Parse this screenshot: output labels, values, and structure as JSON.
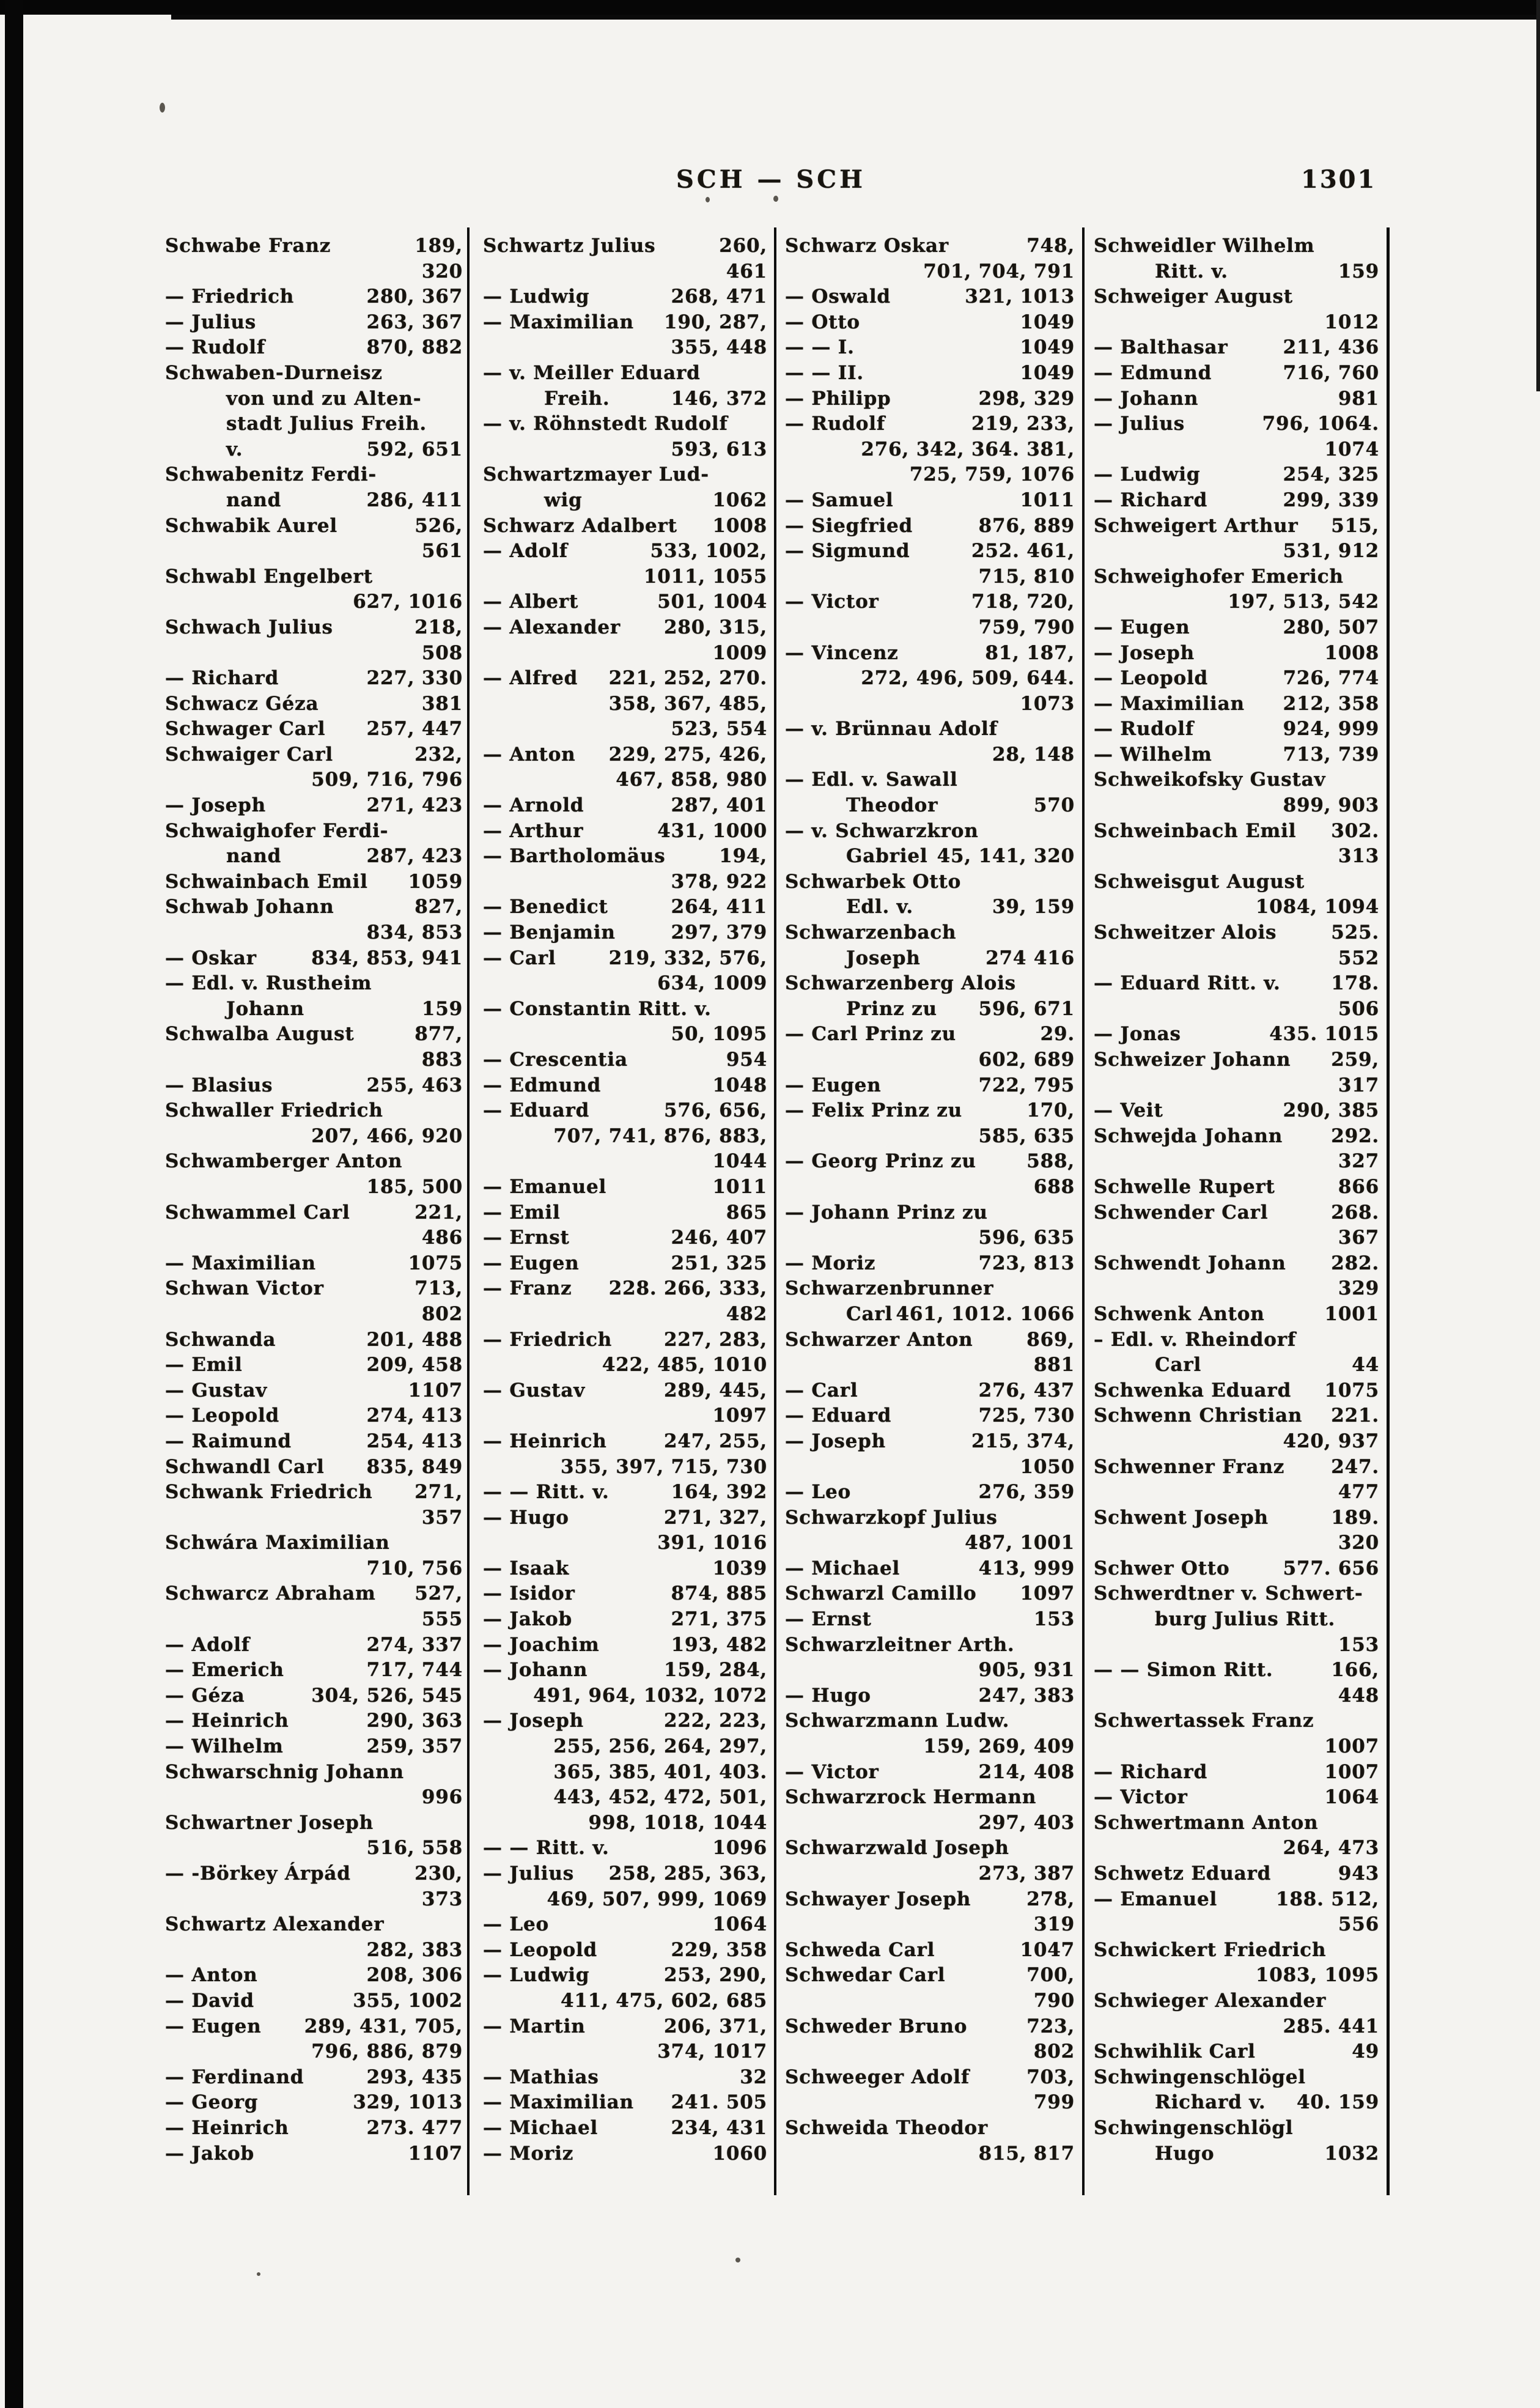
{
  "header": {
    "section_title": "SCH — SCH",
    "page_number": "1301"
  },
  "columns": [
    {
      "lines": [
        [
          "Schwabe Franz",
          "189,"
        ],
        [
          "",
          "320"
        ],
        [
          "— Friedrich",
          "280, 367"
        ],
        [
          "— Julius",
          "263, 367"
        ],
        [
          "— Rudolf",
          "870, 882"
        ],
        [
          "Schwaben-Durneisz",
          ""
        ],
        [
          "von und zu Alten-",
          "",
          1
        ],
        [
          "stadt Julius Freih.",
          "",
          1
        ],
        [
          "v.",
          "592, 651",
          1
        ],
        [
          "Schwabenitz Ferdi-",
          ""
        ],
        [
          "nand",
          "286, 411",
          1
        ],
        [
          "Schwabik Aurel",
          "526,"
        ],
        [
          "",
          "561"
        ],
        [
          "Schwabl Engelbert",
          ""
        ],
        [
          "",
          "627, 1016"
        ],
        [
          "Schwach Julius",
          "218,"
        ],
        [
          "",
          "508"
        ],
        [
          "— Richard",
          "227, 330"
        ],
        [
          "Schwacz Géza",
          "381"
        ],
        [
          "Schwager Carl",
          "257, 447"
        ],
        [
          "Schwaiger Carl",
          "232,"
        ],
        [
          "",
          "509, 716, 796"
        ],
        [
          "— Joseph",
          "271, 423"
        ],
        [
          "Schwaighofer Ferdi-",
          ""
        ],
        [
          "nand",
          "287, 423",
          1
        ],
        [
          "Schwainbach Emil",
          "1059"
        ],
        [
          "Schwab Johann",
          "827,"
        ],
        [
          "",
          "834, 853"
        ],
        [
          "— Oskar",
          "834, 853, 941"
        ],
        [
          "— Edl. v. Rustheim",
          ""
        ],
        [
          "Johann",
          "159",
          1
        ],
        [
          "Schwalba August",
          "877,"
        ],
        [
          "",
          "883"
        ],
        [
          "— Blasius",
          "255, 463"
        ],
        [
          "Schwaller Friedrich",
          ""
        ],
        [
          "",
          "207, 466, 920"
        ],
        [
          "Schwamberger Anton",
          ""
        ],
        [
          "",
          "185, 500"
        ],
        [
          "Schwammel Carl",
          "221,"
        ],
        [
          "",
          "486"
        ],
        [
          "— Maximilian",
          "1075"
        ],
        [
          "Schwan Victor",
          "713,"
        ],
        [
          "",
          "802"
        ],
        [
          "Schwanda",
          "201, 488"
        ],
        [
          "— Emil",
          "209, 458"
        ],
        [
          "— Gustav",
          "1107"
        ],
        [
          "— Leopold",
          "274, 413"
        ],
        [
          "— Raimund",
          "254, 413"
        ],
        [
          "Schwandl Carl",
          "835, 849"
        ],
        [
          "Schwank Friedrich",
          "271,"
        ],
        [
          "",
          "357"
        ],
        [
          "Schwára Maximilian",
          ""
        ],
        [
          "",
          "710, 756"
        ],
        [
          "Schwarcz Abraham",
          "527,"
        ],
        [
          "",
          "555"
        ],
        [
          "— Adolf",
          "274, 337"
        ],
        [
          "— Emerich",
          "717, 744"
        ],
        [
          "— Géza",
          "304, 526, 545"
        ],
        [
          "— Heinrich",
          "290, 363"
        ],
        [
          "— Wilhelm",
          "259, 357"
        ],
        [
          "Schwarschnig Johann",
          ""
        ],
        [
          "",
          "996"
        ],
        [
          "Schwartner Joseph",
          ""
        ],
        [
          "",
          "516, 558"
        ],
        [
          "— -Börkey Árpád",
          "230,"
        ],
        [
          "",
          "373"
        ],
        [
          "Schwartz Alexander",
          ""
        ],
        [
          "",
          "282, 383"
        ],
        [
          "— Anton",
          "208, 306"
        ],
        [
          "— David",
          "355, 1002"
        ],
        [
          "— Eugen",
          "289, 431, 705,"
        ],
        [
          "",
          "796, 886, 879"
        ],
        [
          "— Ferdinand",
          "293, 435"
        ],
        [
          "— Georg",
          "329, 1013"
        ],
        [
          "— Heinrich",
          "273. 477"
        ],
        [
          "— Jakob",
          "1107"
        ]
      ]
    },
    {
      "lines": [
        [
          "Schwartz Julius",
          "260,"
        ],
        [
          "",
          "461"
        ],
        [
          "— Ludwig",
          "268, 471"
        ],
        [
          "— Maximilian",
          "190, 287,"
        ],
        [
          "",
          "355, 448"
        ],
        [
          "— v. Meiller Eduard",
          ""
        ],
        [
          "Freih.",
          "146, 372",
          1
        ],
        [
          "— v. Röhnstedt Rudolf",
          ""
        ],
        [
          "",
          "593, 613"
        ],
        [
          "Schwartzmayer Lud-",
          ""
        ],
        [
          "wig",
          "1062",
          1
        ],
        [
          "Schwarz Adalbert",
          "1008"
        ],
        [
          "— Adolf",
          "533, 1002,"
        ],
        [
          "",
          "1011, 1055"
        ],
        [
          "— Albert",
          "501, 1004"
        ],
        [
          "— Alexander",
          "280, 315,"
        ],
        [
          "",
          "1009"
        ],
        [
          "— Alfred",
          "221, 252, 270."
        ],
        [
          "",
          "358, 367, 485,"
        ],
        [
          "",
          "523, 554"
        ],
        [
          "— Anton",
          "229, 275, 426,"
        ],
        [
          "",
          "467, 858, 980"
        ],
        [
          "— Arnold",
          "287, 401"
        ],
        [
          "— Arthur",
          "431, 1000"
        ],
        [
          "— Bartholomäus",
          "194,"
        ],
        [
          "",
          "378, 922"
        ],
        [
          "— Benedict",
          "264, 411"
        ],
        [
          "— Benjamin",
          "297, 379"
        ],
        [
          "— Carl",
          "219, 332, 576,"
        ],
        [
          "",
          "634, 1009"
        ],
        [
          "— Constantin Ritt. v.",
          ""
        ],
        [
          "",
          "50, 1095"
        ],
        [
          "— Crescentia",
          "954"
        ],
        [
          "— Edmund",
          "1048"
        ],
        [
          "— Eduard",
          "576, 656,"
        ],
        [
          "",
          "707, 741, 876, 883,"
        ],
        [
          "",
          "1044"
        ],
        [
          "— Emanuel",
          "1011"
        ],
        [
          "— Emil",
          "865"
        ],
        [
          "— Ernst",
          "246, 407"
        ],
        [
          "— Eugen",
          "251, 325"
        ],
        [
          "— Franz",
          "228. 266, 333,"
        ],
        [
          "",
          "482"
        ],
        [
          "— Friedrich",
          "227, 283,"
        ],
        [
          "",
          "422, 485, 1010"
        ],
        [
          "— Gustav",
          "289, 445,"
        ],
        [
          "",
          "1097"
        ],
        [
          "— Heinrich",
          "247, 255,"
        ],
        [
          "",
          "355, 397, 715, 730"
        ],
        [
          "— — Ritt. v.",
          "164, 392"
        ],
        [
          "— Hugo",
          "271, 327,"
        ],
        [
          "",
          "391, 1016"
        ],
        [
          "— Isaak",
          "1039"
        ],
        [
          "— Isidor",
          "874, 885"
        ],
        [
          "— Jakob",
          "271, 375"
        ],
        [
          "— Joachim",
          "193, 482"
        ],
        [
          "— Johann",
          "159, 284,"
        ],
        [
          "",
          "491, 964, 1032, 1072"
        ],
        [
          "— Joseph",
          "222, 223,"
        ],
        [
          "",
          "255, 256, 264, 297,"
        ],
        [
          "",
          "365, 385, 401, 403."
        ],
        [
          "",
          "443, 452, 472, 501,"
        ],
        [
          "",
          "998, 1018, 1044"
        ],
        [
          "— — Ritt. v.",
          "1096"
        ],
        [
          "— Julius",
          "258, 285, 363,"
        ],
        [
          "",
          "469, 507, 999, 1069"
        ],
        [
          "— Leo",
          "1064"
        ],
        [
          "— Leopold",
          "229, 358"
        ],
        [
          "— Ludwig",
          "253, 290,"
        ],
        [
          "",
          "411, 475, 602, 685"
        ],
        [
          "— Martin",
          "206, 371,"
        ],
        [
          "",
          "374, 1017"
        ],
        [
          "— Mathias",
          "32"
        ],
        [
          "— Maximilian",
          "241. 505"
        ],
        [
          "— Michael",
          "234, 431"
        ],
        [
          "— Moriz",
          "1060"
        ]
      ]
    },
    {
      "lines": [
        [
          "Schwarz Oskar",
          "748,"
        ],
        [
          "",
          "701, 704, 791"
        ],
        [
          "— Oswald",
          "321, 1013"
        ],
        [
          "— Otto",
          "1049"
        ],
        [
          "— — I.",
          "1049"
        ],
        [
          "— — II.",
          "1049"
        ],
        [
          "— Philipp",
          "298, 329"
        ],
        [
          "— Rudolf",
          "219, 233,"
        ],
        [
          "",
          "276, 342, 364. 381,"
        ],
        [
          "",
          "725, 759, 1076"
        ],
        [
          "— Samuel",
          "1011"
        ],
        [
          "— Siegfried",
          "876, 889"
        ],
        [
          "— Sigmund",
          "252. 461,"
        ],
        [
          "",
          "715, 810"
        ],
        [
          "— Victor",
          "718, 720,"
        ],
        [
          "",
          "759, 790"
        ],
        [
          "— Vincenz",
          "81, 187,"
        ],
        [
          "",
          "272, 496, 509, 644."
        ],
        [
          "",
          "1073"
        ],
        [
          "— v. Brünnau Adolf",
          ""
        ],
        [
          "",
          "28, 148"
        ],
        [
          "— Edl. v. Sawall",
          ""
        ],
        [
          "Theodor",
          "570",
          1
        ],
        [
          "— v. Schwarzkron",
          ""
        ],
        [
          "Gabriel",
          "45, 141, 320",
          1
        ],
        [
          "Schwarbek Otto",
          ""
        ],
        [
          "Edl. v.",
          "39, 159",
          1
        ],
        [
          "Schwarzenbach",
          ""
        ],
        [
          "Joseph",
          "274 416",
          1
        ],
        [
          "Schwarzenberg Alois",
          ""
        ],
        [
          "Prinz zu",
          "596, 671",
          1
        ],
        [
          "— Carl Prinz zu",
          "29."
        ],
        [
          "",
          "602, 689"
        ],
        [
          "— Eugen",
          "722, 795"
        ],
        [
          "— Felix Prinz zu",
          "170,"
        ],
        [
          "",
          "585, 635"
        ],
        [
          "— Georg Prinz zu",
          "588,"
        ],
        [
          "",
          "688"
        ],
        [
          "— Johann Prinz zu",
          ""
        ],
        [
          "",
          "596, 635"
        ],
        [
          "— Moriz",
          "723, 813"
        ],
        [
          "Schwarzenbrunner",
          ""
        ],
        [
          "Carl",
          "461, 1012. 1066",
          1
        ],
        [
          "Schwarzer Anton",
          "869,"
        ],
        [
          "",
          "881"
        ],
        [
          "— Carl",
          "276, 437"
        ],
        [
          "— Eduard",
          "725, 730"
        ],
        [
          "— Joseph",
          "215, 374,"
        ],
        [
          "",
          "1050"
        ],
        [
          "— Leo",
          "276, 359"
        ],
        [
          "Schwarzkopf Julius",
          ""
        ],
        [
          "",
          "487, 1001"
        ],
        [
          "— Michael",
          "413, 999"
        ],
        [
          "Schwarzl Camillo",
          "1097"
        ],
        [
          "— Ernst",
          "153"
        ],
        [
          "Schwarzleitner Arth.",
          ""
        ],
        [
          "",
          "905, 931"
        ],
        [
          "— Hugo",
          "247, 383"
        ],
        [
          "Schwarzmann Ludw.",
          ""
        ],
        [
          "",
          "159, 269, 409"
        ],
        [
          "— Victor",
          "214, 408"
        ],
        [
          "Schwarzrock Hermann",
          ""
        ],
        [
          "",
          "297, 403"
        ],
        [
          "Schwarzwald Joseph",
          ""
        ],
        [
          "",
          "273, 387"
        ],
        [
          "Schwayer Joseph",
          "278,"
        ],
        [
          "",
          "319"
        ],
        [
          "Schweda Carl",
          "1047"
        ],
        [
          "Schwedar Carl",
          "700,"
        ],
        [
          "",
          "790"
        ],
        [
          "Schweder Bruno",
          "723,"
        ],
        [
          "",
          "802"
        ],
        [
          "Schweeger Adolf",
          "703,"
        ],
        [
          "",
          "799"
        ],
        [
          "Schweida Theodor",
          ""
        ],
        [
          "",
          "815, 817"
        ]
      ]
    },
    {
      "lines": [
        [
          "Schweidler Wilhelm",
          ""
        ],
        [
          "Ritt. v.",
          "159",
          1
        ],
        [
          "Schweiger August",
          ""
        ],
        [
          "",
          "1012"
        ],
        [
          "— Balthasar",
          "211, 436"
        ],
        [
          "— Edmund",
          "716, 760"
        ],
        [
          "— Johann",
          "981"
        ],
        [
          "— Julius",
          "796, 1064."
        ],
        [
          "",
          "1074"
        ],
        [
          "— Ludwig",
          "254, 325"
        ],
        [
          "— Richard",
          "299, 339"
        ],
        [
          "Schweigert Arthur",
          "515,"
        ],
        [
          "",
          "531, 912"
        ],
        [
          "Schweighofer Emerich",
          ""
        ],
        [
          "",
          "197, 513, 542"
        ],
        [
          "— Eugen",
          "280, 507"
        ],
        [
          "— Joseph",
          "1008"
        ],
        [
          "— Leopold",
          "726, 774"
        ],
        [
          "— Maximilian",
          "212, 358"
        ],
        [
          "— Rudolf",
          "924, 999"
        ],
        [
          "— Wilhelm",
          "713, 739"
        ],
        [
          "Schweikofsky Gustav",
          ""
        ],
        [
          "",
          "899, 903"
        ],
        [
          "Schweinbach Emil",
          "302."
        ],
        [
          "",
          "313"
        ],
        [
          "Schweisgut August",
          ""
        ],
        [
          "",
          "1084, 1094"
        ],
        [
          "Schweitzer Alois",
          "525."
        ],
        [
          "",
          "552"
        ],
        [
          "— Eduard Ritt. v.",
          "178."
        ],
        [
          "",
          "506"
        ],
        [
          "— Jonas",
          "435. 1015"
        ],
        [
          "Schweizer Johann",
          "259,"
        ],
        [
          "",
          "317"
        ],
        [
          "— Veit",
          "290, 385"
        ],
        [
          "Schwejda Johann",
          "292."
        ],
        [
          "",
          "327"
        ],
        [
          "Schwelle Rupert",
          "866"
        ],
        [
          "Schwender Carl",
          "268."
        ],
        [
          "",
          "367"
        ],
        [
          "Schwendt Johann",
          "282."
        ],
        [
          "",
          "329"
        ],
        [
          "Schwenk Anton",
          "1001"
        ],
        [
          "– Edl. v. Rheindorf",
          ""
        ],
        [
          "Carl",
          "44",
          1
        ],
        [
          "Schwenka Eduard",
          "1075"
        ],
        [
          "Schwenn Christian",
          "221."
        ],
        [
          "",
          "420, 937"
        ],
        [
          "Schwenner Franz",
          "247."
        ],
        [
          "",
          "477"
        ],
        [
          "Schwent Joseph",
          "189."
        ],
        [
          "",
          "320"
        ],
        [
          "Schwer Otto",
          "577. 656"
        ],
        [
          "Schwerdtner v. Schwert-",
          ""
        ],
        [
          "burg Julius Ritt.",
          "",
          1
        ],
        [
          "",
          "153"
        ],
        [
          "— — Simon Ritt.",
          "166,"
        ],
        [
          "",
          "448"
        ],
        [
          "Schwertassek Franz",
          ""
        ],
        [
          "",
          "1007"
        ],
        [
          "— Richard",
          "1007"
        ],
        [
          "— Victor",
          "1064"
        ],
        [
          "Schwertmann Anton",
          ""
        ],
        [
          "",
          "264, 473"
        ],
        [
          "Schwetz Eduard",
          "943"
        ],
        [
          "— Emanuel",
          "188. 512,"
        ],
        [
          "",
          "556"
        ],
        [
          "Schwickert Friedrich",
          ""
        ],
        [
          "",
          "1083, 1095"
        ],
        [
          "Schwieger Alexander",
          ""
        ],
        [
          "",
          "285. 441"
        ],
        [
          "Schwihlik Carl",
          "49"
        ],
        [
          "Schwingenschlögel",
          ""
        ],
        [
          "Richard v.",
          "40. 159",
          1
        ],
        [
          "Schwingenschlögl",
          ""
        ],
        [
          "Hugo",
          "1032",
          1
        ]
      ]
    }
  ],
  "colors": {
    "paper": "#f4f3f0",
    "ink": "#17140f",
    "scan_border": "#060606"
  }
}
